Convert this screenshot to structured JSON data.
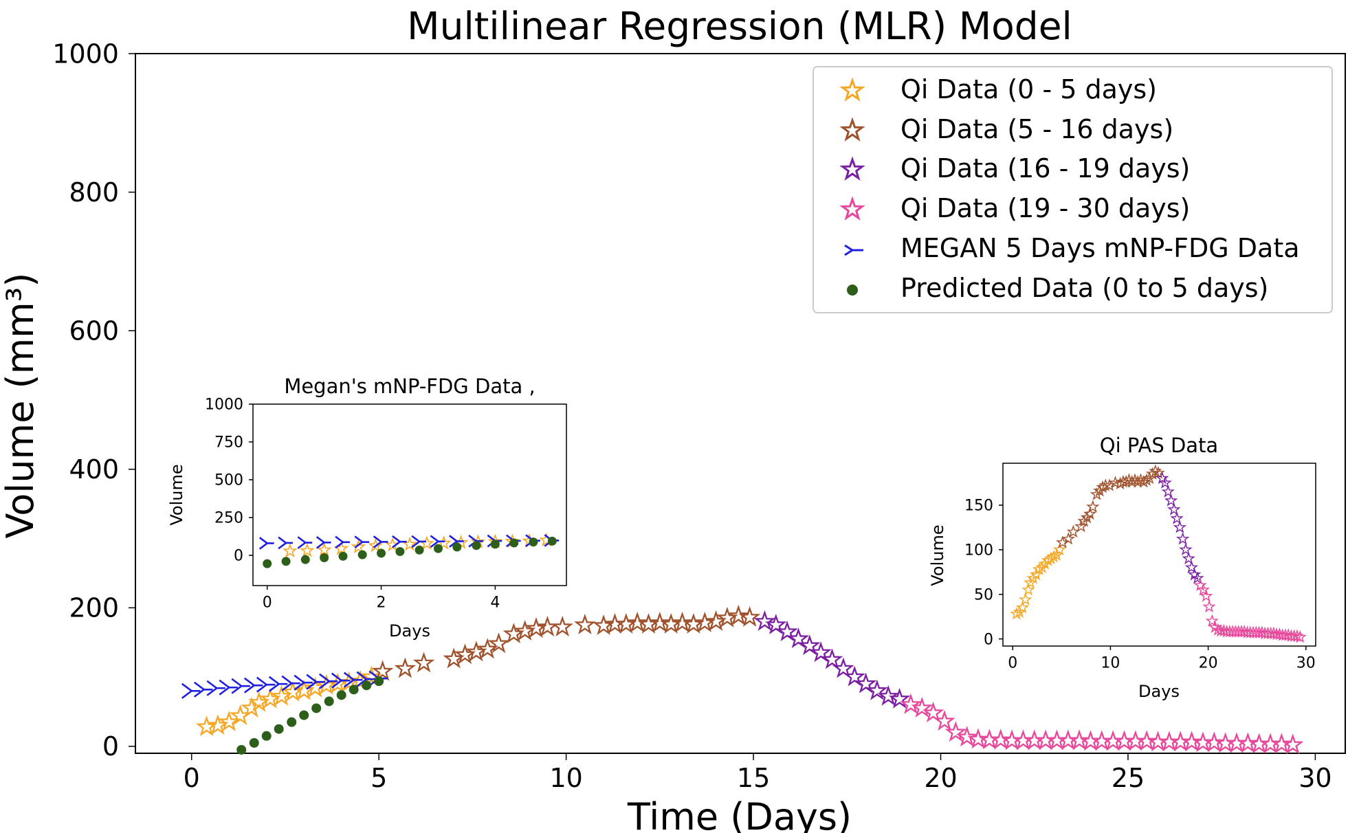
{
  "chart_data": [
    {
      "id": "main",
      "type": "scatter",
      "title": "Multilinear Regression (MLR) Model",
      "xlabel": "Time (Days)",
      "ylabel": "Volume (mm³)",
      "xlim": [
        -1.5,
        30.8
      ],
      "ylim": [
        -10,
        1000
      ],
      "xticks": [
        "0",
        "5",
        "10",
        "15",
        "20",
        "25",
        "30"
      ],
      "yticks": [
        "0",
        "200",
        "400",
        "600",
        "800",
        "1000"
      ],
      "legend_position": "top-right",
      "series": [
        {
          "name": "Qi Data (0 - 5 days)",
          "color": "#f5a623",
          "marker": "star",
          "x": [
            0.4,
            0.7,
            1.0,
            1.3,
            1.6,
            1.8,
            2.1,
            2.4,
            2.7,
            3.0,
            3.3,
            3.6,
            3.9,
            4.2,
            4.5,
            4.8
          ],
          "y": [
            28,
            30,
            35,
            44,
            55,
            63,
            68,
            72,
            78,
            80,
            84,
            88,
            90,
            92,
            94,
            100
          ]
        },
        {
          "name": "Qi Data (5 - 16 days)",
          "color": "#a0522d",
          "marker": "star",
          "x": [
            5.1,
            5.7,
            6.2,
            7.0,
            7.3,
            7.6,
            7.9,
            8.2,
            8.6,
            8.9,
            9.2,
            9.5,
            9.9,
            10.5,
            11.0,
            11.3,
            11.6,
            11.9,
            12.2,
            12.5,
            12.8,
            13.1,
            13.4,
            13.7,
            14.0,
            14.3,
            14.6,
            14.9
          ],
          "y": [
            108,
            112,
            120,
            126,
            132,
            136,
            140,
            148,
            162,
            166,
            170,
            172,
            172,
            175,
            174,
            176,
            176,
            178,
            176,
            178,
            176,
            178,
            176,
            178,
            180,
            185,
            188,
            186
          ]
        },
        {
          "name": "Qi Data (16 - 19 days)",
          "color": "#7b1fa2",
          "marker": "star",
          "x": [
            15.3,
            15.6,
            15.9,
            16.2,
            16.5,
            16.8,
            17.1,
            17.4,
            17.7,
            18.0,
            18.3,
            18.6,
            18.9
          ],
          "y": [
            180,
            175,
            165,
            155,
            145,
            135,
            125,
            112,
            100,
            90,
            80,
            72,
            68
          ]
        },
        {
          "name": "Qi Data (19 - 30 days)",
          "color": "#e8489b",
          "marker": "star",
          "x": [
            19.2,
            19.5,
            19.8,
            20.1,
            20.4,
            20.7,
            21.0,
            21.3,
            21.6,
            21.9,
            22.2,
            22.5,
            22.8,
            23.1,
            23.4,
            23.7,
            24.0,
            24.3,
            24.6,
            24.9,
            25.2,
            25.5,
            25.8,
            26.1,
            26.4,
            26.7,
            27.0,
            27.3,
            27.6,
            27.9,
            28.2,
            28.5,
            28.8,
            29.1,
            29.4
          ],
          "y": [
            60,
            55,
            48,
            36,
            20,
            13,
            10,
            9,
            9,
            8,
            8,
            8,
            8,
            8,
            8,
            8,
            7,
            7,
            7,
            7,
            7,
            7,
            6,
            6,
            6,
            6,
            5,
            5,
            4,
            4,
            4,
            3,
            3,
            3,
            2
          ]
        },
        {
          "name": "MEGAN 5 Days mNP-FDG  Data",
          "color": "#1f1fe0",
          "marker": "tri",
          "x": [
            0.0,
            0.33,
            0.67,
            1.0,
            1.33,
            1.67,
            2.0,
            2.33,
            2.67,
            3.0,
            3.33,
            3.67,
            4.0,
            4.33,
            4.67,
            5.0
          ],
          "y": [
            80,
            82,
            84,
            85,
            87,
            88,
            89,
            90,
            91,
            92,
            93,
            94,
            95,
            96,
            97,
            98
          ]
        },
        {
          "name": "Predicted Data (0 to 5 days)",
          "color": "#2d5e1a",
          "marker": "dot",
          "x": [
            1.33,
            1.67,
            2.0,
            2.33,
            2.67,
            3.0,
            3.33,
            3.67,
            4.0,
            4.33,
            4.67,
            5.0
          ],
          "y": [
            -5,
            5,
            15,
            25,
            35,
            45,
            55,
            65,
            74,
            82,
            88,
            94
          ]
        }
      ]
    },
    {
      "id": "inset-left",
      "type": "scatter",
      "title": "Megan's mNP-FDG  Data ,",
      "xlabel": "Days",
      "ylabel": "Volume",
      "xlim": [
        -0.25,
        5.25
      ],
      "ylim": [
        -200,
        1000
      ],
      "xticks": [
        "0",
        "2",
        "4"
      ],
      "yticks": [
        "0",
        "250",
        "500",
        "750",
        "1000"
      ],
      "series": [
        {
          "name": "Qi Data (0 - 5 days)",
          "color": "#f5a623",
          "marker": "star",
          "x": [
            0.4,
            0.7,
            1.0,
            1.3,
            1.6,
            1.9,
            2.2,
            2.5,
            2.8,
            3.1,
            3.4,
            3.7,
            4.0,
            4.3,
            4.6,
            4.9
          ],
          "y": [
            28,
            30,
            35,
            44,
            55,
            63,
            68,
            72,
            78,
            80,
            84,
            88,
            90,
            92,
            94,
            100
          ]
        },
        {
          "name": "MEGAN 5 Days mNP-FDG  Data",
          "color": "#1f1fe0",
          "marker": "tri",
          "x": [
            0.0,
            0.33,
            0.67,
            1.0,
            1.33,
            1.67,
            2.0,
            2.33,
            2.67,
            3.0,
            3.33,
            3.67,
            4.0,
            4.33,
            4.67,
            5.0
          ],
          "y": [
            80,
            82,
            84,
            85,
            87,
            88,
            89,
            90,
            91,
            92,
            93,
            94,
            95,
            96,
            97,
            98
          ]
        },
        {
          "name": "Predicted Data (0 to 5 days)",
          "color": "#2d5e1a",
          "marker": "dot",
          "x": [
            0.0,
            0.33,
            0.67,
            1.0,
            1.33,
            1.67,
            2.0,
            2.33,
            2.67,
            3.0,
            3.33,
            3.67,
            4.0,
            4.33,
            4.67,
            5.0
          ],
          "y": [
            -55,
            -40,
            -28,
            -16,
            -6,
            4,
            14,
            25,
            35,
            45,
            55,
            65,
            74,
            82,
            88,
            94
          ]
        }
      ]
    },
    {
      "id": "inset-right",
      "type": "scatter",
      "title": "Qi PAS Data",
      "xlabel": "Days",
      "ylabel": "Volume",
      "xlim": [
        -1,
        31
      ],
      "ylim": [
        -8,
        197
      ],
      "xticks": [
        "0",
        "10",
        "20",
        "30"
      ],
      "yticks": [
        "0",
        "50",
        "100",
        "150"
      ],
      "series": [
        {
          "name": "Qi Data (0 - 5 days)",
          "color": "#f5a623",
          "marker": "star",
          "x": [
            0.4,
            0.7,
            1.0,
            1.3,
            1.6,
            1.8,
            2.1,
            2.4,
            2.7,
            3.0,
            3.3,
            3.6,
            3.9,
            4.2,
            4.5,
            4.8
          ],
          "y": [
            28,
            30,
            35,
            44,
            55,
            63,
            68,
            72,
            78,
            80,
            84,
            88,
            90,
            92,
            94,
            100
          ]
        },
        {
          "name": "Qi Data (5 - 16 days)",
          "color": "#a0522d",
          "marker": "star",
          "x": [
            5.1,
            5.7,
            6.2,
            7.0,
            7.3,
            7.6,
            7.9,
            8.2,
            8.6,
            8.9,
            9.2,
            9.5,
            9.9,
            10.5,
            11.0,
            11.3,
            11.6,
            11.9,
            12.2,
            12.5,
            12.8,
            13.1,
            13.4,
            13.7,
            14.0,
            14.3,
            14.6,
            14.9
          ],
          "y": [
            108,
            112,
            120,
            126,
            132,
            136,
            140,
            148,
            162,
            166,
            170,
            172,
            172,
            175,
            174,
            176,
            176,
            178,
            176,
            178,
            176,
            178,
            176,
            178,
            180,
            185,
            188,
            186
          ]
        },
        {
          "name": "Qi Data (16 - 19 days)",
          "color": "#7b1fa2",
          "marker": "star",
          "x": [
            15.3,
            15.6,
            15.9,
            16.2,
            16.5,
            16.8,
            17.1,
            17.4,
            17.7,
            18.0,
            18.3,
            18.6,
            18.9
          ],
          "y": [
            180,
            175,
            165,
            155,
            145,
            135,
            125,
            112,
            100,
            90,
            80,
            72,
            68
          ]
        },
        {
          "name": "Qi Data (19 - 30 days)",
          "color": "#e8489b",
          "marker": "star",
          "x": [
            19.2,
            19.5,
            19.8,
            20.1,
            20.4,
            20.7,
            21.0,
            21.3,
            21.6,
            21.9,
            22.2,
            22.5,
            22.8,
            23.1,
            23.4,
            23.7,
            24.0,
            24.3,
            24.6,
            24.9,
            25.2,
            25.5,
            25.8,
            26.1,
            26.4,
            26.7,
            27.0,
            27.3,
            27.6,
            27.9,
            28.2,
            28.5,
            28.8,
            29.1,
            29.4
          ],
          "y": [
            60,
            55,
            48,
            36,
            20,
            13,
            10,
            9,
            9,
            8,
            8,
            8,
            8,
            8,
            8,
            8,
            7,
            7,
            7,
            7,
            7,
            7,
            6,
            6,
            6,
            6,
            5,
            5,
            4,
            4,
            4,
            3,
            3,
            3,
            2
          ]
        }
      ]
    }
  ]
}
